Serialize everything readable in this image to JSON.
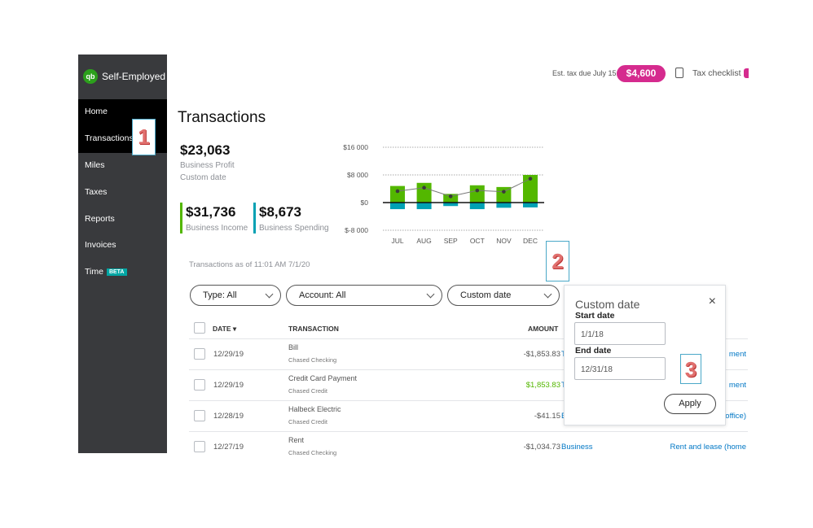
{
  "sidebar": {
    "brand": "Self-Employed",
    "items": [
      {
        "label": "Home"
      },
      {
        "label": "Transactions"
      },
      {
        "label": "Miles"
      },
      {
        "label": "Taxes"
      },
      {
        "label": "Reports"
      },
      {
        "label": "Invoices"
      },
      {
        "label": "Time"
      }
    ],
    "beta": "BETA",
    "selected": "Transactions"
  },
  "header": {
    "tax_label": "Est. tax due July 15:",
    "tax_amount": "$4,600",
    "checklist": "Tax checklist",
    "brand_color": "#d52b8e"
  },
  "markers": [
    "1",
    "2",
    "3"
  ],
  "page_title": "Transactions",
  "summary": {
    "profit": "$23,063",
    "profit_label": "Business Profit",
    "period": "Custom date",
    "income": "$31,736",
    "income_label": "Business Income",
    "spending": "$8,673",
    "spending_label": "Business Spending"
  },
  "chart_data": {
    "type": "bar",
    "categories": [
      "JUL",
      "AUG",
      "SEP",
      "OCT",
      "NOV",
      "DEC"
    ],
    "y_ticks": [
      "$16 000",
      "$8 000",
      "$0",
      "$-8 000"
    ],
    "ylim": [
      -8000,
      16000
    ],
    "grid": true,
    "series": [
      {
        "values": [
          4800,
          5700,
          2500,
          5000,
          4500,
          8000
        ],
        "color": "#53b700"
      },
      {
        "values": [
          -1900,
          -1900,
          -1000,
          -1900,
          -1500,
          -1400
        ],
        "color": "#00a1b3"
      },
      {
        "values": [
          3300,
          4300,
          1800,
          3500,
          3150,
          6900
        ],
        "color": "#777777",
        "kind": "line"
      }
    ]
  },
  "as_of": "Transactions as of 11:01 AM 7/1/20",
  "filters": {
    "type": "Type: All",
    "account": "Account: All",
    "date": "Custom date"
  },
  "table": {
    "headers": {
      "date": "DATE ▾",
      "transaction": "TRANSACTION",
      "amount": "AMOUNT"
    },
    "rows": [
      {
        "date": "12/29/19",
        "name": "Bill",
        "account": "Chased Checking",
        "amount": "-$1,853.83",
        "positive": false,
        "category": "T",
        "subcategory": "ment"
      },
      {
        "date": "12/29/19",
        "name": "Credit Card Payment",
        "account": "Chased Credit",
        "amount": "$1,853.83",
        "positive": true,
        "category": "T",
        "subcategory": "ment"
      },
      {
        "date": "12/28/19",
        "name": "Halbeck Electric",
        "account": "Chased Credit",
        "amount": "-$41.15",
        "positive": false,
        "category": "E",
        "subcategory": "office)"
      },
      {
        "date": "12/27/19",
        "name": "Rent",
        "account": "Chased Checking",
        "amount": "-$1,034.73",
        "positive": false,
        "category": "Business",
        "subcategory": "Rent and lease (home"
      }
    ]
  },
  "popover": {
    "title": "Custom date",
    "start_label": "Start date",
    "start_value": "1/1/18",
    "end_label": "End date",
    "end_value": "12/31/18",
    "apply": "Apply",
    "close": "×"
  }
}
